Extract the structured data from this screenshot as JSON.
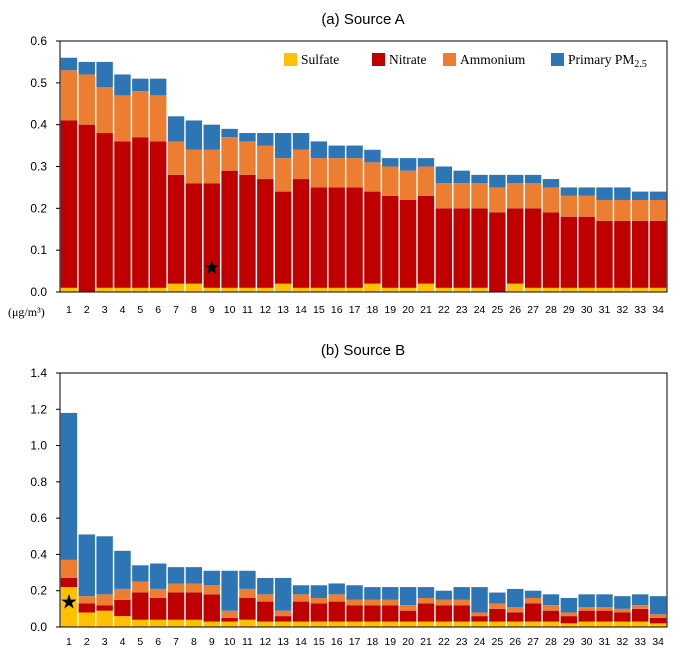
{
  "colors": {
    "sulfate": "#ffc000",
    "nitrate": "#c00000",
    "ammonium": "#ed7d31",
    "primary": "#2e75b6"
  },
  "chart_data": [
    {
      "type": "bar",
      "stacked": true,
      "title": "(a) Source A",
      "unit_label": "(μg/m³)",
      "ylim": [
        0,
        0.6
      ],
      "yticks": [
        "0.0",
        "0.1",
        "0.2",
        "0.3",
        "0.4",
        "0.5",
        "0.6"
      ],
      "categories": [
        "1",
        "2",
        "3",
        "4",
        "5",
        "6",
        "7",
        "8",
        "9",
        "10",
        "11",
        "12",
        "13",
        "14",
        "15",
        "16",
        "17",
        "18",
        "19",
        "20",
        "21",
        "22",
        "23",
        "24",
        "25",
        "26",
        "27",
        "28",
        "29",
        "30",
        "31",
        "32",
        "33",
        "34"
      ],
      "legend": {
        "placement": "top-right",
        "items": [
          {
            "key": "sulfate",
            "label": "Sulfate"
          },
          {
            "key": "nitrate",
            "label": "Nitrate"
          },
          {
            "key": "ammonium",
            "label": "Ammonium"
          },
          {
            "key": "primary",
            "label": "Primary PM",
            "sub": "2.5"
          }
        ]
      },
      "marker": {
        "symbol": "★",
        "category": "9",
        "value": 0.06
      },
      "series": [
        {
          "name": "Sulfate",
          "key": "sulfate",
          "values": [
            0.01,
            0,
            0.01,
            0.01,
            0.01,
            0.01,
            0.02,
            0.02,
            0.01,
            0.01,
            0.01,
            0.01,
            0.02,
            0.01,
            0.01,
            0.01,
            0.01,
            0.02,
            0.01,
            0.01,
            0.02,
            0.01,
            0.01,
            0.01,
            0,
            0.02,
            0.01,
            0.01,
            0.01,
            0.01,
            0.01,
            0.01,
            0.01,
            0.01
          ]
        },
        {
          "name": "Nitrate",
          "key": "nitrate",
          "values": [
            0.4,
            0.4,
            0.37,
            0.35,
            0.36,
            0.35,
            0.26,
            0.24,
            0.25,
            0.28,
            0.27,
            0.26,
            0.22,
            0.26,
            0.24,
            0.24,
            0.24,
            0.22,
            0.22,
            0.21,
            0.21,
            0.19,
            0.19,
            0.19,
            0.19,
            0.18,
            0.19,
            0.18,
            0.17,
            0.17,
            0.16,
            0.16,
            0.16,
            0.16
          ]
        },
        {
          "name": "Ammonium",
          "key": "ammonium",
          "values": [
            0.12,
            0.12,
            0.11,
            0.11,
            0.11,
            0.11,
            0.08,
            0.08,
            0.08,
            0.08,
            0.08,
            0.08,
            0.08,
            0.07,
            0.07,
            0.07,
            0.07,
            0.07,
            0.07,
            0.07,
            0.07,
            0.06,
            0.06,
            0.06,
            0.06,
            0.06,
            0.06,
            0.06,
            0.05,
            0.05,
            0.05,
            0.05,
            0.05,
            0.05
          ]
        },
        {
          "name": "Primary PM2.5",
          "key": "primary",
          "values": [
            0.03,
            0.03,
            0.06,
            0.05,
            0.03,
            0.04,
            0.06,
            0.07,
            0.06,
            0.02,
            0.02,
            0.03,
            0.06,
            0.04,
            0.04,
            0.03,
            0.03,
            0.03,
            0.02,
            0.03,
            0.02,
            0.04,
            0.03,
            0.02,
            0.03,
            0.02,
            0.02,
            0.02,
            0.02,
            0.02,
            0.03,
            0.03,
            0.02,
            0.02
          ]
        }
      ]
    },
    {
      "type": "bar",
      "stacked": true,
      "title": "(b) Source B",
      "ylim": [
        0,
        1.4
      ],
      "yticks": [
        "0.0",
        "0.2",
        "0.4",
        "0.6",
        "0.8",
        "1.0",
        "1.2",
        "1.4"
      ],
      "categories": [
        "1",
        "2",
        "3",
        "4",
        "5",
        "6",
        "7",
        "8",
        "9",
        "10",
        "11",
        "12",
        "13",
        "14",
        "15",
        "16",
        "17",
        "18",
        "19",
        "20",
        "21",
        "22",
        "23",
        "24",
        "25",
        "26",
        "27",
        "28",
        "29",
        "30",
        "31",
        "32",
        "33",
        "34"
      ],
      "marker": {
        "symbol": "★",
        "category": "1",
        "value": 0.14
      },
      "series": [
        {
          "name": "Sulfate",
          "key": "sulfate",
          "values": [
            0.22,
            0.08,
            0.09,
            0.06,
            0.04,
            0.04,
            0.04,
            0.04,
            0.03,
            0.03,
            0.04,
            0.03,
            0.03,
            0.03,
            0.03,
            0.03,
            0.03,
            0.03,
            0.03,
            0.03,
            0.03,
            0.03,
            0.03,
            0.03,
            0.03,
            0.03,
            0.03,
            0.03,
            0.02,
            0.03,
            0.03,
            0.03,
            0.03,
            0.02
          ]
        },
        {
          "name": "Nitrate",
          "key": "nitrate",
          "values": [
            0.05,
            0.05,
            0.03,
            0.09,
            0.15,
            0.12,
            0.15,
            0.15,
            0.15,
            0.02,
            0.12,
            0.11,
            0.03,
            0.11,
            0.1,
            0.11,
            0.09,
            0.09,
            0.09,
            0.06,
            0.1,
            0.09,
            0.09,
            0.03,
            0.07,
            0.05,
            0.1,
            0.06,
            0.04,
            0.06,
            0.06,
            0.05,
            0.07,
            0.03
          ]
        },
        {
          "name": "Ammonium",
          "key": "ammonium",
          "values": [
            0.1,
            0.04,
            0.06,
            0.06,
            0.06,
            0.05,
            0.05,
            0.05,
            0.05,
            0.04,
            0.05,
            0.04,
            0.03,
            0.04,
            0.03,
            0.04,
            0.03,
            0.03,
            0.03,
            0.03,
            0.03,
            0.03,
            0.03,
            0.02,
            0.03,
            0.03,
            0.03,
            0.03,
            0.02,
            0.02,
            0.02,
            0.02,
            0.02,
            0.02
          ]
        },
        {
          "name": "Primary PM2.5",
          "key": "primary",
          "values": [
            0.81,
            0.34,
            0.32,
            0.21,
            0.09,
            0.14,
            0.09,
            0.09,
            0.08,
            0.22,
            0.1,
            0.09,
            0.18,
            0.05,
            0.07,
            0.06,
            0.08,
            0.07,
            0.07,
            0.1,
            0.06,
            0.05,
            0.07,
            0.14,
            0.06,
            0.1,
            0.04,
            0.06,
            0.08,
            0.07,
            0.07,
            0.07,
            0.06,
            0.1
          ]
        }
      ]
    }
  ]
}
